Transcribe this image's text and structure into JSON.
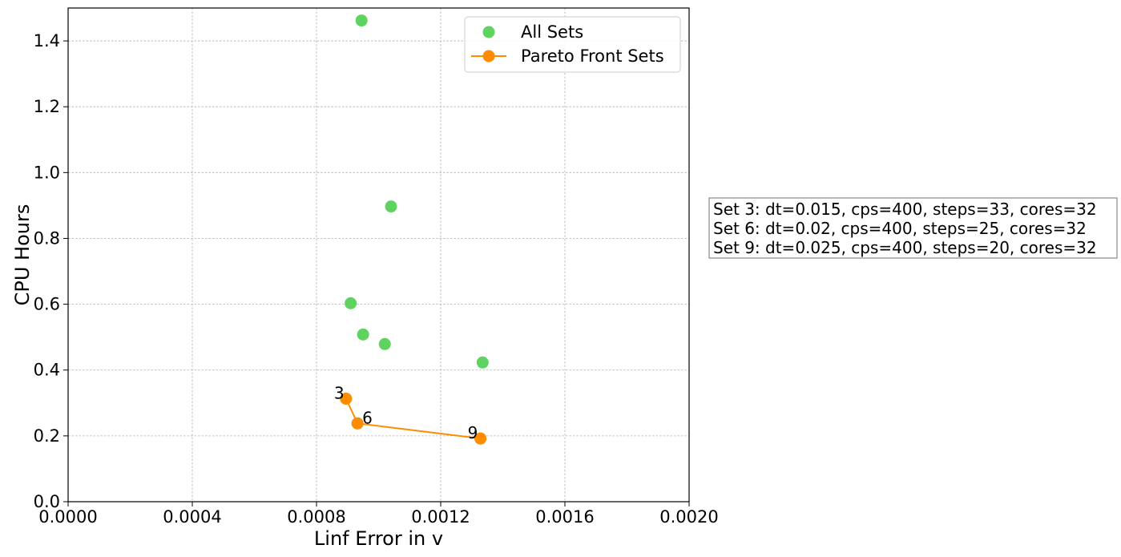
{
  "chart_data": {
    "type": "scatter",
    "xlabel": "Linf Error in v",
    "ylabel": "CPU Hours",
    "xlim": [
      0,
      0.002
    ],
    "ylim": [
      0,
      1.5
    ],
    "x_ticks": [
      "0.0000",
      "0.0004",
      "0.0008",
      "0.0012",
      "0.0016",
      "0.0020"
    ],
    "y_ticks": [
      "0.0",
      "0.2",
      "0.4",
      "0.6",
      "0.8",
      "1.0",
      "1.2",
      "1.4"
    ],
    "grid": true,
    "legend_position": "top-right",
    "series": [
      {
        "name": "All Sets",
        "kind": "scatter",
        "color": "#5fd35f",
        "points": [
          {
            "x": 0.000945,
            "y": 1.462
          },
          {
            "x": 0.00104,
            "y": 0.897
          },
          {
            "x": 0.00091,
            "y": 0.603
          },
          {
            "x": 0.00095,
            "y": 0.508
          },
          {
            "x": 0.00102,
            "y": 0.479
          },
          {
            "x": 0.001335,
            "y": 0.423
          },
          {
            "x": 0.000895,
            "y": 0.313
          },
          {
            "x": 0.000932,
            "y": 0.238
          },
          {
            "x": 0.001328,
            "y": 0.192
          }
        ]
      },
      {
        "name": "Pareto Front Sets",
        "kind": "line-marker",
        "color": "#ff8c00",
        "points": [
          {
            "x": 0.000895,
            "y": 0.313,
            "label": "3"
          },
          {
            "x": 0.000932,
            "y": 0.238,
            "label": "6"
          },
          {
            "x": 0.001328,
            "y": 0.192,
            "label": "9"
          }
        ]
      }
    ],
    "annotation_lines": [
      "Set 3: dt=0.015, cps=400, steps=33, cores=32",
      "Set 6: dt=0.02, cps=400, steps=25, cores=32",
      "Set 9: dt=0.025, cps=400, steps=20, cores=32"
    ]
  }
}
